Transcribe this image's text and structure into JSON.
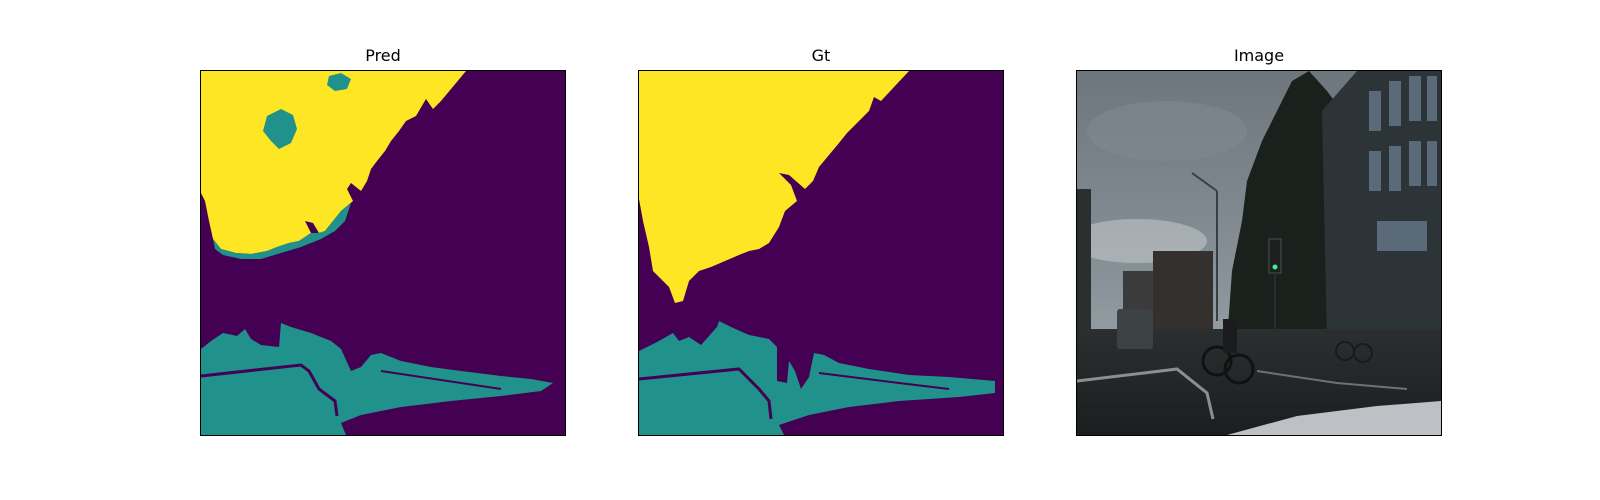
{
  "figure": {
    "panels": [
      {
        "title": "Pred"
      },
      {
        "title": "Gt"
      },
      {
        "title": "Image"
      }
    ]
  },
  "colors": {
    "background_class": "#440154",
    "mid_class": "#21918c",
    "sky_class": "#fde725",
    "frame": "#000000"
  }
}
